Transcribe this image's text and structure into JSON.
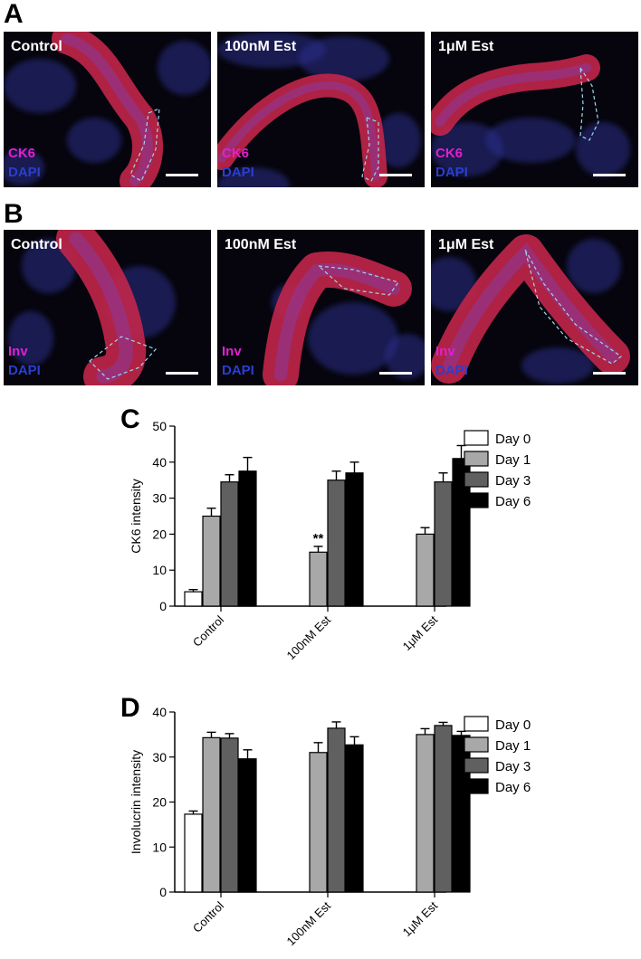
{
  "panel_a": {
    "letter": "A",
    "images": [
      {
        "condition": "Control",
        "marker_red": "CK6",
        "marker_blue": "DAPI"
      },
      {
        "condition": "100nM Est",
        "marker_red": "CK6",
        "marker_blue": "DAPI"
      },
      {
        "condition": "1μM Est",
        "marker_red": "CK6",
        "marker_blue": "DAPI"
      }
    ]
  },
  "panel_b": {
    "letter": "B",
    "images": [
      {
        "condition": "Control",
        "marker_red": "Inv",
        "marker_blue": "DAPI"
      },
      {
        "condition": "100nM Est",
        "marker_red": "Inv",
        "marker_blue": "DAPI"
      },
      {
        "condition": "1μM Est",
        "marker_red": "Inv",
        "marker_blue": "DAPI"
      }
    ]
  },
  "colors": {
    "marker_red": "#e020d0",
    "marker_blue": "#2a3fd0",
    "day0": "#ffffff",
    "day1": "#a8a8a8",
    "day3": "#606060",
    "day6": "#000000"
  },
  "chart_data": [
    {
      "panel": "C",
      "type": "bar",
      "ylabel": "CK6 intensity",
      "ylim": [
        0,
        50
      ],
      "yticks": [
        0,
        10,
        20,
        30,
        40,
        50
      ],
      "categories": [
        "Control",
        "100nM Est",
        "1μM Est"
      ],
      "series": [
        {
          "name": "Day 0",
          "values": [
            4,
            null,
            null
          ],
          "errors": [
            0.6,
            null,
            null
          ]
        },
        {
          "name": "Day 1",
          "values": [
            25,
            15,
            20
          ],
          "errors": [
            2.2,
            1.6,
            1.8
          ]
        },
        {
          "name": "Day 3",
          "values": [
            34.5,
            35,
            34.5
          ],
          "errors": [
            2.0,
            2.5,
            2.5
          ]
        },
        {
          "name": "Day 6",
          "values": [
            37.5,
            37,
            41
          ],
          "errors": [
            3.8,
            3.0,
            3.6
          ]
        }
      ],
      "annotations": [
        {
          "category": "100nM Est",
          "series": "Day 1",
          "text": "**"
        }
      ],
      "legend": "right",
      "grid": false
    },
    {
      "panel": "D",
      "type": "bar",
      "ylabel": "Involucrin intensity",
      "ylim": [
        0,
        40
      ],
      "yticks": [
        0,
        10,
        20,
        30,
        40
      ],
      "categories": [
        "Control",
        "100nM Est",
        "1μM Est"
      ],
      "series": [
        {
          "name": "Day 0",
          "values": [
            17.3,
            null,
            null
          ],
          "errors": [
            0.7,
            null,
            null
          ]
        },
        {
          "name": "Day 1",
          "values": [
            34.3,
            31,
            35
          ],
          "errors": [
            1.2,
            2.2,
            1.3
          ]
        },
        {
          "name": "Day 3",
          "values": [
            34.2,
            36.4,
            37
          ],
          "errors": [
            1.0,
            1.4,
            0.7
          ]
        },
        {
          "name": "Day 6",
          "values": [
            29.6,
            32.7,
            34.8
          ],
          "errors": [
            2.0,
            1.8,
            0.9
          ]
        }
      ],
      "annotations": [],
      "legend": "right",
      "grid": false
    }
  ]
}
